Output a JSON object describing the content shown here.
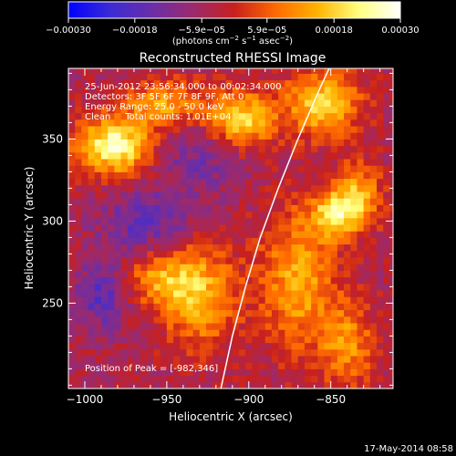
{
  "chart_data": {
    "type": "heatmap",
    "title": "Reconstructed RHESSI Image",
    "xlabel": "Heliocentric X (arcsec)",
    "ylabel": "Heliocentric Y (arcsec)",
    "xlim": [
      -1010,
      -812
    ],
    "ylim": [
      198,
      393
    ],
    "x_ticks": [
      -1000,
      -950,
      -900,
      -850
    ],
    "x_tick_labels": [
      "−1000",
      "−950",
      "−900",
      "−850"
    ],
    "y_ticks": [
      250,
      300,
      350
    ],
    "y_tick_labels": [
      "250",
      "300",
      "350"
    ],
    "colorbar": {
      "range": [
        -0.0003,
        0.0003
      ],
      "ticks": [
        -0.0003,
        -0.00018,
        -5.9e-05,
        5.9e-05,
        0.00018,
        0.0003
      ],
      "tick_labels": [
        "−0.00030",
        "−0.00018",
        "−5.9e−05",
        "5.9e−05",
        "0.00018",
        "0.00030"
      ],
      "unit_parts": [
        "(photons cm",
        "−2",
        " s",
        "−1",
        " asec",
        "−2",
        ")"
      ],
      "colors": [
        "#0000ff",
        "#3b2bd6",
        "#6a2ea8",
        "#9b2a6e",
        "#c8201e",
        "#ff6a00",
        "#ffb300",
        "#ffff80",
        "#ffffff"
      ]
    },
    "annotations": [
      "25-Jun-2012 23:56:34.000 to 00:02:34.000",
      "Detectors: 3F 5F 6F 7F 8F 9F, Att 0",
      "Energy Range: 25.0 - 50.0 keV",
      "Clean     Total counts: 1.01E+04"
    ],
    "peak_label": "Position of Peak = [-982,346]",
    "peak": {
      "x": -982,
      "y": 346
    },
    "sources": [
      {
        "x": -982,
        "y": 346,
        "sx": 16,
        "sy": 12,
        "amp": 1.0
      },
      {
        "x": -950,
        "y": 372,
        "sx": 18,
        "sy": 10,
        "amp": 0.55
      },
      {
        "x": -905,
        "y": 362,
        "sx": 14,
        "sy": 12,
        "amp": 0.8
      },
      {
        "x": -855,
        "y": 372,
        "sx": 16,
        "sy": 14,
        "amp": 0.75
      },
      {
        "x": -848,
        "y": 305,
        "sx": 10,
        "sy": 10,
        "amp": 0.7
      },
      {
        "x": -833,
        "y": 315,
        "sx": 10,
        "sy": 14,
        "amp": 0.6
      },
      {
        "x": -870,
        "y": 265,
        "sx": 16,
        "sy": 30,
        "amp": 0.6
      },
      {
        "x": -930,
        "y": 255,
        "sx": 16,
        "sy": 22,
        "amp": 0.65
      },
      {
        "x": -955,
        "y": 265,
        "sx": 14,
        "sy": 12,
        "amp": 0.5
      },
      {
        "x": -840,
        "y": 225,
        "sx": 12,
        "sy": 18,
        "amp": 0.5
      },
      {
        "x": -962,
        "y": 300,
        "sx": 20,
        "sy": 14,
        "amp": -0.4
      },
      {
        "x": -990,
        "y": 255,
        "sx": 12,
        "sy": 14,
        "amp": -0.45
      },
      {
        "x": -930,
        "y": 340,
        "sx": 18,
        "sy": 16,
        "amp": -0.3
      }
    ],
    "limb_points": [
      [
        -917,
        198
      ],
      [
        -910,
        230
      ],
      [
        -902,
        260
      ],
      [
        -893,
        290
      ],
      [
        -882,
        320
      ],
      [
        -870,
        350
      ],
      [
        -857,
        380
      ],
      [
        -851,
        393
      ]
    ],
    "timestamp": "17-May-2014 08:58"
  }
}
